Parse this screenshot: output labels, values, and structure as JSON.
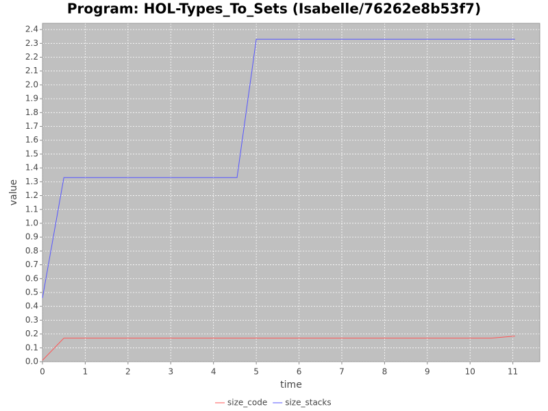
{
  "chart_data": {
    "type": "line",
    "title": "Program: HOL-Types_To_Sets (Isabelle/76262e8b53f7)",
    "x_label": "time",
    "y_label": "value",
    "series": [
      {
        "name": "size_code",
        "color": "#ff5555",
        "x": [
          0,
          0.5,
          10.5,
          11.05
        ],
        "values": [
          0.01,
          0.17,
          0.17,
          0.185
        ]
      },
      {
        "name": "size_stacks",
        "color": "#5555ff",
        "x": [
          0,
          0.5,
          4.55,
          5,
          11.05
        ],
        "values": [
          0.46,
          1.33,
          1.33,
          2.33,
          2.33
        ]
      }
    ],
    "xlim": [
      0,
      11.63
    ],
    "ylim": [
      0,
      2.445
    ],
    "xticks": [
      0,
      1,
      2,
      3,
      4,
      5,
      6,
      7,
      8,
      9,
      10,
      11
    ],
    "yticks": [
      {
        "value": 0,
        "label": "0.0"
      },
      0.1,
      0.2,
      0.3,
      0.4,
      0.5,
      0.6,
      0.7,
      0.8,
      0.9,
      {
        "value": 1,
        "label": "1.0"
      },
      1.1,
      1.2,
      1.3,
      1.4,
      1.5,
      1.6,
      1.7,
      1.8,
      1.9,
      {
        "value": 2,
        "label": "2.0"
      },
      2.1,
      2.2,
      2.3,
      2.4
    ],
    "grid": true,
    "legend": "bottom"
  }
}
